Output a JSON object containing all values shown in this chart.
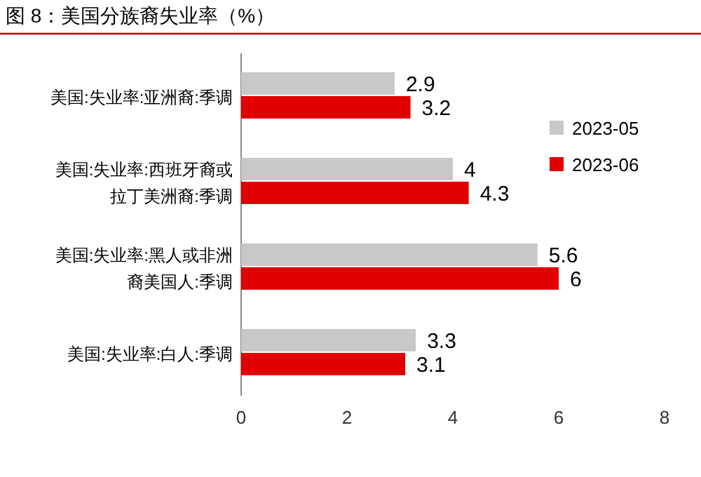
{
  "chart_data": {
    "type": "bar",
    "orientation": "horizontal",
    "title": "图 8：美国分族裔失业率（%）",
    "categories": [
      "美国:失业率:亚洲裔:季调",
      "美国:失业率:西班牙裔或拉丁美洲裔:季调",
      "美国:失业率:黑人或非洲裔美国人:季调",
      "美国:失业率:白人:季调"
    ],
    "series": [
      {
        "name": "2023-05",
        "color": "#c8c8c8",
        "values": [
          2.9,
          4,
          5.6,
          3.3
        ]
      },
      {
        "name": "2023-06",
        "color": "#e00000",
        "values": [
          3.2,
          4.3,
          6,
          3.1
        ]
      }
    ],
    "xlim": [
      0,
      8
    ],
    "xticks": [
      0,
      2,
      4,
      6,
      8
    ],
    "data_labels": true,
    "legend": "right",
    "grid": false
  }
}
